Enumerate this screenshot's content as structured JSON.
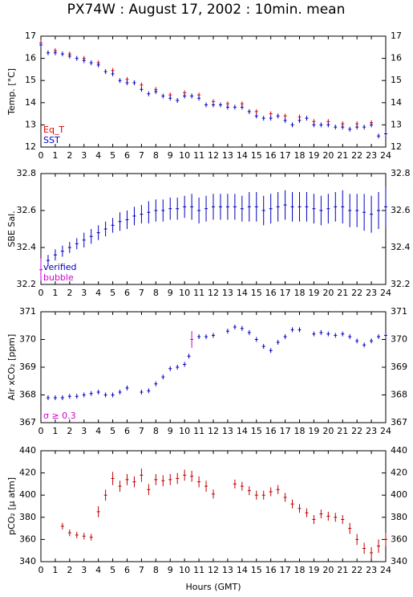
{
  "title": "PX74W : August 17, 2002 : 10min. mean",
  "chart_data": [
    {
      "type": "scatter",
      "ylabel": "Temp. [°C]",
      "xlim": [
        0,
        24
      ],
      "xticks": [
        0,
        1,
        2,
        3,
        4,
        5,
        6,
        7,
        8,
        9,
        10,
        11,
        12,
        13,
        14,
        15,
        16,
        17,
        18,
        19,
        20,
        21,
        22,
        23,
        24
      ],
      "ylim": [
        12,
        17
      ],
      "yticks": [
        12,
        13,
        14,
        15,
        16,
        17
      ],
      "series": [
        {
          "name": "Eq_T",
          "color": "#e00000",
          "x": [
            0,
            1,
            2,
            3,
            4,
            5,
            6,
            7,
            8,
            9,
            10,
            11,
            12,
            13,
            14,
            15,
            16,
            17,
            18,
            19,
            20,
            21,
            22,
            23
          ],
          "values": [
            16.7,
            16.35,
            16.2,
            16.0,
            15.8,
            15.45,
            15.05,
            14.8,
            14.6,
            14.35,
            14.45,
            14.35,
            14.05,
            13.95,
            13.95,
            13.6,
            13.5,
            13.4,
            13.35,
            13.15,
            13.15,
            13.05,
            13.05,
            13.1
          ]
        },
        {
          "name": "SST",
          "color": "#0000c0",
          "x": [
            0,
            0.5,
            1,
            1.5,
            2,
            2.5,
            3,
            3.5,
            4,
            4.5,
            5,
            5.5,
            6,
            6.5,
            7,
            7.5,
            8,
            8.5,
            9,
            9.5,
            10,
            10.5,
            11,
            11.5,
            12,
            12.5,
            13,
            13.5,
            14,
            14.5,
            15,
            15.5,
            16,
            16.5,
            17,
            17.5,
            18,
            18.5,
            19,
            19.5,
            20,
            20.5,
            21,
            21.5,
            22,
            22.5,
            23,
            23.5,
            24
          ],
          "values": [
            16.6,
            16.25,
            16.25,
            16.2,
            16.1,
            16.0,
            15.9,
            15.8,
            15.7,
            15.4,
            15.3,
            15.0,
            14.9,
            14.9,
            14.6,
            14.4,
            14.5,
            14.3,
            14.2,
            14.1,
            14.3,
            14.3,
            14.2,
            13.9,
            13.9,
            13.9,
            13.8,
            13.8,
            13.8,
            13.6,
            13.4,
            13.3,
            13.3,
            13.4,
            13.2,
            13.0,
            13.2,
            13.3,
            13.0,
            13.0,
            13.0,
            12.9,
            12.9,
            12.8,
            12.9,
            12.9,
            13.0,
            12.5,
            12.6
          ]
        }
      ]
    },
    {
      "type": "scatter",
      "ylabel": "SBE Sal.",
      "xlim": [
        0,
        24
      ],
      "xticks": [
        0,
        1,
        2,
        3,
        4,
        5,
        6,
        7,
        8,
        9,
        10,
        11,
        12,
        13,
        14,
        15,
        16,
        17,
        18,
        19,
        20,
        21,
        22,
        23,
        24
      ],
      "ylim": [
        32.2,
        32.8
      ],
      "yticks": [
        32.2,
        32.4,
        32.6,
        32.8
      ],
      "series": [
        {
          "name": "verified",
          "color": "#0000c0",
          "x": [
            0.5,
            1,
            1.5,
            2,
            2.5,
            3,
            3.5,
            4,
            4.5,
            5,
            5.5,
            6,
            6.5,
            7,
            7.5,
            8,
            8.5,
            9,
            9.5,
            10,
            10.5,
            11,
            11.5,
            12,
            12.5,
            13,
            13.5,
            14,
            14.5,
            15,
            15.5,
            16,
            16.5,
            17,
            17.5,
            18,
            18.5,
            19,
            19.5,
            20,
            20.5,
            21,
            21.5,
            22,
            22.5,
            23,
            23.5,
            24
          ],
          "values": [
            32.33,
            32.36,
            32.38,
            32.4,
            32.42,
            32.44,
            32.46,
            32.48,
            32.5,
            32.52,
            32.54,
            32.55,
            32.57,
            32.58,
            32.59,
            32.6,
            32.6,
            32.61,
            32.61,
            32.62,
            32.62,
            32.6,
            32.61,
            32.62,
            32.62,
            32.62,
            32.62,
            32.61,
            32.62,
            32.62,
            32.6,
            32.61,
            32.62,
            32.63,
            32.62,
            32.62,
            32.62,
            32.61,
            32.6,
            32.61,
            32.62,
            32.62,
            32.6,
            32.6,
            32.59,
            32.58,
            32.6,
            32.62
          ],
          "errors": [
            0.03,
            0.03,
            0.03,
            0.03,
            0.03,
            0.04,
            0.04,
            0.04,
            0.04,
            0.04,
            0.05,
            0.05,
            0.05,
            0.05,
            0.06,
            0.06,
            0.06,
            0.06,
            0.06,
            0.06,
            0.07,
            0.07,
            0.07,
            0.07,
            0.07,
            0.07,
            0.07,
            0.07,
            0.08,
            0.08,
            0.08,
            0.08,
            0.08,
            0.08,
            0.08,
            0.08,
            0.08,
            0.08,
            0.08,
            0.08,
            0.08,
            0.09,
            0.09,
            0.09,
            0.1,
            0.1,
            0.1,
            0.11
          ]
        },
        {
          "name": "bubble",
          "color": "#d000d0",
          "x": [
            0
          ],
          "values": [
            32.28
          ],
          "errors": [
            0.06
          ]
        }
      ]
    },
    {
      "type": "scatter",
      "ylabel": "Air xCO₂ [ppm]",
      "xlim": [
        0,
        24
      ],
      "xticks": [
        0,
        1,
        2,
        3,
        4,
        5,
        6,
        7,
        8,
        9,
        10,
        11,
        12,
        13,
        14,
        15,
        16,
        17,
        18,
        19,
        20,
        21,
        22,
        23,
        24
      ],
      "ylim": [
        367,
        371
      ],
      "yticks": [
        367,
        368,
        369,
        370,
        371
      ],
      "series": [
        {
          "color": "#0000c0",
          "x": [
            0.5,
            1,
            1.5,
            2,
            2.5,
            3,
            3.5,
            4,
            4.5,
            5,
            5.5,
            6,
            6.5,
            7,
            7.5,
            8,
            8.5,
            9,
            9.5,
            10,
            10.3,
            11,
            11.5,
            12,
            12.5,
            13,
            13.5,
            14,
            14.5,
            15,
            15.5,
            16,
            16.5,
            17,
            17.5,
            18,
            18.5,
            19,
            19.5,
            20,
            20.5,
            21,
            21.5,
            22,
            22.5,
            23,
            23.5,
            24
          ],
          "values": [
            367.9,
            367.9,
            367.9,
            367.95,
            367.95,
            368.0,
            368.05,
            368.1,
            368.0,
            368.0,
            368.1,
            368.25,
            null,
            368.1,
            368.15,
            368.4,
            368.65,
            368.95,
            369.0,
            369.1,
            369.4,
            370.1,
            370.1,
            370.15,
            null,
            370.3,
            370.45,
            370.4,
            370.25,
            370.0,
            369.75,
            369.6,
            369.9,
            370.1,
            370.35,
            370.35,
            null,
            370.2,
            370.25,
            370.2,
            370.15,
            370.2,
            370.1,
            369.95,
            369.8,
            369.95,
            370.1,
            370.15
          ]
        },
        {
          "name": "σ ≥ 0.3",
          "color": "#d000d0",
          "x": [
            10.5
          ],
          "values": [
            370.0
          ],
          "errors": [
            0.3
          ]
        }
      ]
    },
    {
      "type": "scatter",
      "ylabel": "pCO₂ [µ atm]",
      "xlabel": "Hours (GMT)",
      "xlim": [
        0,
        24
      ],
      "xticks": [
        0,
        1,
        2,
        3,
        4,
        5,
        6,
        7,
        8,
        9,
        10,
        11,
        12,
        13,
        14,
        15,
        16,
        17,
        18,
        19,
        20,
        21,
        22,
        23,
        24
      ],
      "ylim": [
        340,
        440
      ],
      "yticks": [
        340,
        360,
        380,
        400,
        420,
        440
      ],
      "series": [
        {
          "color": "#c00000",
          "x": [
            1.5,
            2,
            2.5,
            3,
            3.5,
            4,
            4.5,
            5,
            5.5,
            6,
            6.5,
            7,
            7.5,
            8,
            8.5,
            9,
            9.5,
            10,
            10.5,
            11,
            11.5,
            12,
            12.5,
            13,
            13.5,
            14,
            14.5,
            15,
            15.5,
            16,
            16.5,
            17,
            17.5,
            18,
            18.5,
            19,
            19.5,
            20,
            20.5,
            21,
            21.5,
            22,
            22.5,
            23,
            23.5,
            24
          ],
          "values": [
            372,
            366,
            364,
            363,
            362,
            385,
            400,
            415,
            408,
            414,
            412,
            418,
            405,
            414,
            413,
            414,
            415,
            418,
            417,
            412,
            408,
            401,
            null,
            null,
            410,
            408,
            404,
            400,
            400,
            403,
            405,
            398,
            392,
            388,
            384,
            378,
            383,
            381,
            380,
            378,
            370,
            360,
            352,
            348,
            354,
            360
          ],
          "errors": [
            3,
            3,
            3,
            3,
            3,
            5,
            5,
            6,
            5,
            5,
            5,
            6,
            5,
            5,
            5,
            5,
            5,
            5,
            5,
            5,
            5,
            4,
            null,
            null,
            4,
            4,
            4,
            4,
            4,
            4,
            4,
            4,
            4,
            4,
            4,
            4,
            4,
            4,
            4,
            4,
            5,
            5,
            5,
            5,
            6,
            6
          ]
        }
      ]
    }
  ]
}
